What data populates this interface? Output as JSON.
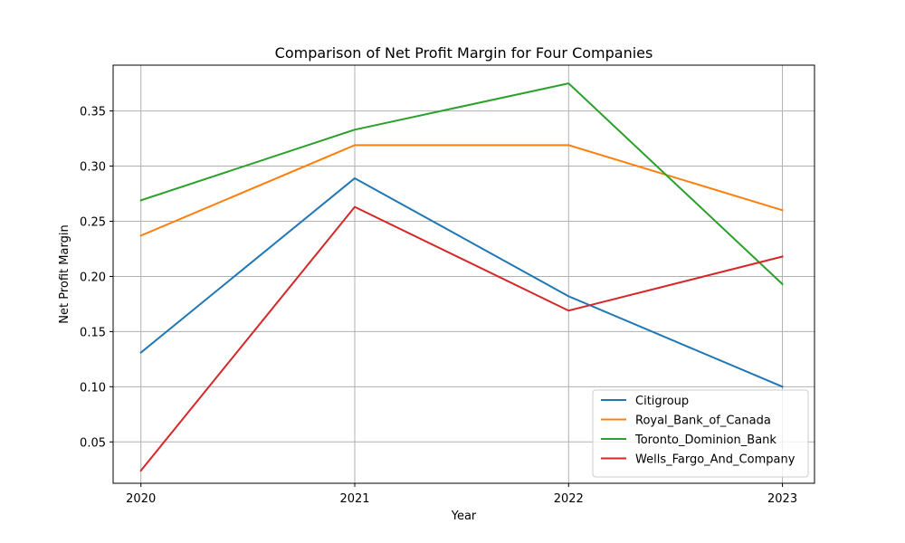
{
  "chart_data": {
    "type": "line",
    "title": "Comparison of Net Profit Margin for Four Companies",
    "xlabel": "Year",
    "ylabel": "Net Profit Margin",
    "x": [
      "2020",
      "2021",
      "2022",
      "2023"
    ],
    "xlim": [
      2019.87,
      2023.15
    ],
    "ylim": [
      0.0125,
      0.3915
    ],
    "yticks": [
      "0.05",
      "0.10",
      "0.15",
      "0.20",
      "0.25",
      "0.30",
      "0.35"
    ],
    "grid": true,
    "legend_position": "lower right",
    "series": [
      {
        "name": "Citigroup",
        "color": "#1f77b4",
        "values": [
          0.131,
          0.289,
          0.182,
          0.1
        ]
      },
      {
        "name": "Royal_Bank_of_Canada",
        "color": "#ff7f0e",
        "values": [
          0.237,
          0.319,
          0.319,
          0.26
        ]
      },
      {
        "name": "Toronto_Dominion_Bank",
        "color": "#2ca02c",
        "values": [
          0.269,
          0.333,
          0.375,
          0.193
        ]
      },
      {
        "name": "Wells_Fargo_And_Company",
        "color": "#d62728",
        "values": [
          0.024,
          0.263,
          0.169,
          0.218
        ]
      }
    ]
  }
}
